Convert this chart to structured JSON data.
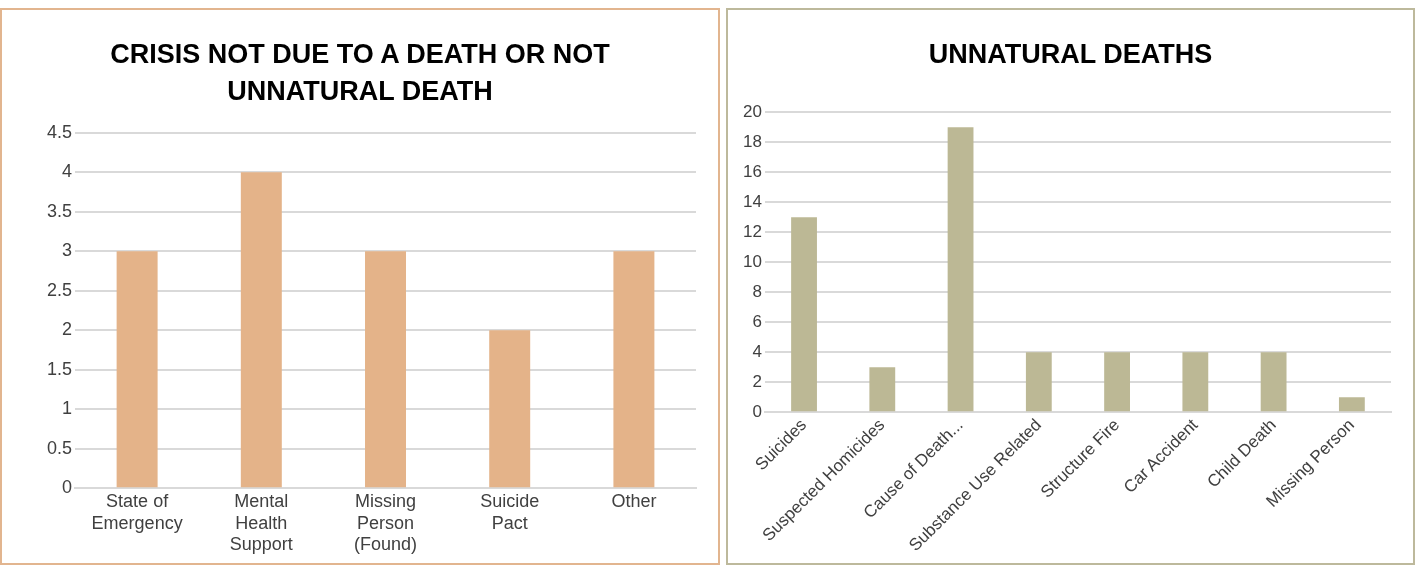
{
  "chart_data": [
    {
      "type": "bar",
      "title": "CRISIS NOT DUE TO A DEATH OR NOT UNNATURAL DEATH",
      "categories": [
        "State of Emergency",
        "Mental Health Support",
        "Missing Person (Found)",
        "Suicide Pact",
        "Other"
      ],
      "values": [
        3,
        4,
        3,
        2,
        3
      ],
      "color": "#e4b389",
      "ylim": [
        0,
        4.5
      ],
      "yticks": [
        0,
        0.5,
        1,
        1.5,
        2,
        2.5,
        3,
        3.5,
        4,
        4.5
      ],
      "grid": "y"
    },
    {
      "type": "bar",
      "title": "UNNATURAL DEATHS",
      "categories": [
        "Suicides",
        "Suspected Homicides",
        "Cause of Death...",
        "Substance Use Related",
        "Structure Fire",
        "Car Accident",
        "Child Death",
        "Missing Person"
      ],
      "values": [
        13,
        3,
        19,
        4,
        4,
        4,
        4,
        1
      ],
      "color": "#bcb895",
      "ylim": [
        0,
        20
      ],
      "yticks": [
        0,
        2,
        4,
        6,
        8,
        10,
        12,
        14,
        16,
        18,
        20
      ],
      "grid": "y"
    }
  ]
}
